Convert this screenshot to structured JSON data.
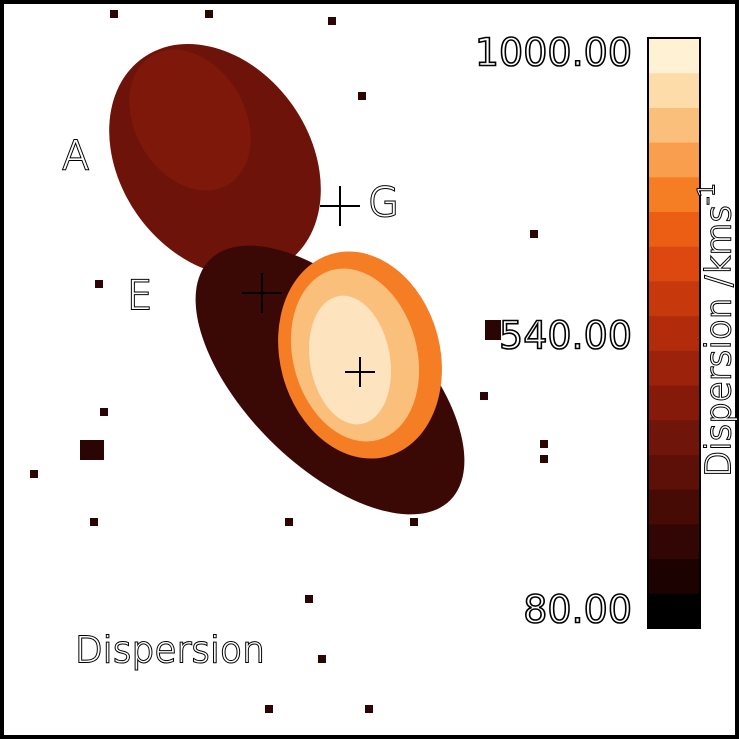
{
  "panel_label": "Dispersion",
  "regions": [
    "A",
    "E",
    "G"
  ],
  "colorbar": {
    "label": "Dispersion /kms",
    "label_sup": "-1",
    "ticks": [
      "1000.00",
      "540.00",
      "80.00"
    ],
    "colors": [
      "#000000",
      "#1c0201",
      "#320604",
      "#470b06",
      "#5c1008",
      "#701509",
      "#861a0a",
      "#9c220b",
      "#b22c0c",
      "#c8380d",
      "#dc4810",
      "#ec5e14",
      "#f57d24",
      "#f99e4c",
      "#fbbf7c",
      "#fddcaa",
      "#fef1d4"
    ]
  }
}
